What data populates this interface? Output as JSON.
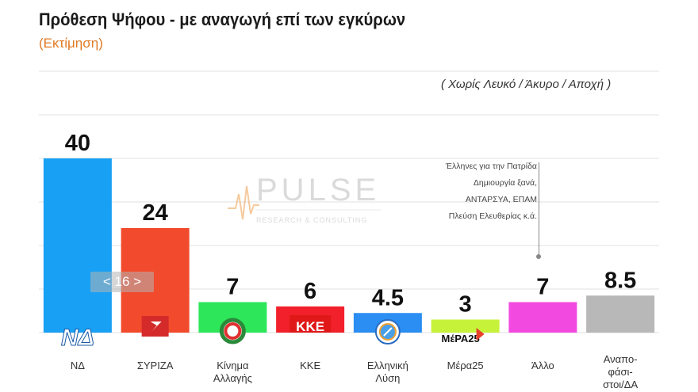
{
  "header": {
    "title": "Πρόθεση Ψήφου - με αναγωγή επί των εγκύρων",
    "subtitle": "(Εκτίμηση)",
    "note": "( Χωρίς Λευκό / Άκυρο / Αποχή )"
  },
  "annotation": {
    "lines": [
      "Έλληνες για την Πατρίδα",
      "Δημιουργία ξανά,",
      "ΑΝΤΑΡΣΥΑ, ΕΠΑΜ",
      "Πλεύση Ελευθερίας κ.ά."
    ]
  },
  "watermark": {
    "name": "PULSE",
    "sub": "RESEARCH & CONSULTING"
  },
  "pager": {
    "label": "< 16 >"
  },
  "chart_data": {
    "type": "bar",
    "categories": [
      "ΝΔ",
      "ΣΥΡΙΖΑ",
      "Κίνημα Αλλαγής",
      "ΚΚΕ",
      "Ελληνική Λύση",
      "Μέρα25",
      "Άλλο",
      "Αναποφάσιστοι/ΔΑ"
    ],
    "category_lines": [
      [
        "ΝΔ"
      ],
      [
        "ΣΥΡΙΖΑ"
      ],
      [
        "Κίνημα",
        "Αλλαγής"
      ],
      [
        "ΚΚΕ"
      ],
      [
        "Ελληνική",
        "Λύση"
      ],
      [
        "Μέρα25"
      ],
      [
        "Άλλο"
      ],
      [
        "Αναπο-",
        "φάσι-",
        "στοι/ΔΑ"
      ]
    ],
    "values": [
      40,
      24,
      7,
      6,
      4.5,
      3,
      7,
      8.5
    ],
    "value_labels": [
      "40",
      "24",
      "7",
      "6",
      "4.5",
      "3",
      "7",
      "8.5"
    ],
    "colors": [
      "#18a0f4",
      "#f24a2c",
      "#2ee65a",
      "#f2202a",
      "#2a8ef2",
      "#c6f23a",
      "#f24ae0",
      "#b8b8b8"
    ],
    "logos": [
      "ΝΔ",
      "",
      "",
      "ΚΚΕ",
      "",
      "ΜέΡΑ25",
      "",
      ""
    ],
    "ylim": [
      0,
      40
    ],
    "grid": true
  }
}
